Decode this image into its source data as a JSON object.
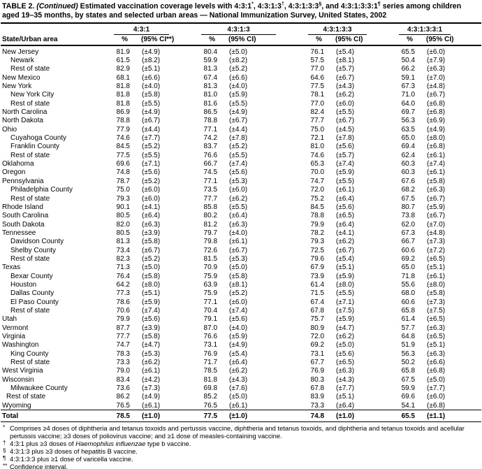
{
  "title": {
    "segments": [
      {
        "text": "TABLE 2. "
      },
      {
        "text": "(Continued)",
        "italic": true
      },
      {
        "text": " Estimated vaccination coverage levels with 4:3:1"
      },
      {
        "text": "*",
        "sup": true
      },
      {
        "text": ", 4:3:1:3",
        "nosp": true
      },
      {
        "text": "†",
        "sup": true
      },
      {
        "text": ", 4:3:1:3:3",
        "nosp": true
      },
      {
        "text": "§",
        "sup": true
      },
      {
        "text": ", and 4:3:1:3:3:1",
        "nosp": true
      },
      {
        "text": "¶",
        "sup": true
      },
      {
        "text": " series among children aged 19–35 months, by states and selected urban areas — National Immunization Survey, United States, 2002"
      }
    ]
  },
  "table": {
    "state_header": "State/Urban area",
    "groups": [
      {
        "label": "4:3:1",
        "pct_header": "%",
        "ci_header": "(95% CI**)"
      },
      {
        "label": "4:3:1:3",
        "pct_header": "%",
        "ci_header": "(95% CI)"
      },
      {
        "label": "4:3:1:3:3",
        "pct_header": "%",
        "ci_header": "(95% CI)"
      },
      {
        "label": "4:3:1:3:3:1",
        "pct_header": "%",
        "ci_header": "(95% CI)"
      }
    ],
    "rows": [
      {
        "area": "New Jersey",
        "indent": 0,
        "values": [
          "81.9",
          "(±4.9)",
          "80.4",
          "(±5.0)",
          "76.1",
          "(±5.4)",
          "65.5",
          "(±6.0)"
        ]
      },
      {
        "area": "Newark",
        "indent": 2,
        "values": [
          "61.5",
          "(±8.2)",
          "59.9",
          "(±8.2)",
          "57.5",
          "(±8.1)",
          "50.4",
          "(±7.9)"
        ]
      },
      {
        "area": "Rest of state",
        "indent": 2,
        "values": [
          "82.9",
          "(±5.1)",
          "81.3",
          "(±5.2)",
          "77.0",
          "(±5.7)",
          "66.2",
          "(±6.3)"
        ]
      },
      {
        "area": "New Mexico",
        "indent": 0,
        "values": [
          "68.1",
          "(±6.6)",
          "67.4",
          "(±6.6)",
          "64.6",
          "(±6.7)",
          "59.1",
          "(±7.0)"
        ]
      },
      {
        "area": "New York",
        "indent": 0,
        "values": [
          "81.8",
          "(±4.0)",
          "81.3",
          "(±4.0)",
          "77.5",
          "(±4.3)",
          "67.3",
          "(±4.8)"
        ]
      },
      {
        "area": "New York City",
        "indent": 2,
        "values": [
          "81.8",
          "(±5.8)",
          "81.0",
          "(±5.9)",
          "78.1",
          "(±6.2)",
          "71.0",
          "(±6.7)"
        ]
      },
      {
        "area": "Rest of state",
        "indent": 2,
        "values": [
          "81.8",
          "(±5.5)",
          "81.6",
          "(±5.5)",
          "77.0",
          "(±6.0)",
          "64.0",
          "(±6.8)"
        ]
      },
      {
        "area": "North Carolina",
        "indent": 0,
        "values": [
          "86.9",
          "(±4.9)",
          "86.5",
          "(±4.9)",
          "82.4",
          "(±5.5)",
          "69.7",
          "(±6.8)"
        ]
      },
      {
        "area": "North Dakota",
        "indent": 0,
        "values": [
          "78.8",
          "(±6.7)",
          "78.8",
          "(±6.7)",
          "77.7",
          "(±6.7)",
          "56.3",
          "(±6.9)"
        ]
      },
      {
        "area": "Ohio",
        "indent": 0,
        "values": [
          "77.9",
          "(±4.4)",
          "77.1",
          "(±4.4)",
          "75.0",
          "(±4.5)",
          "63.5",
          "(±4.9)"
        ]
      },
      {
        "area": "Cuyahoga County",
        "indent": 2,
        "values": [
          "74.6",
          "(±7.7)",
          "74.2",
          "(±7.8)",
          "72.1",
          "(±7.8)",
          "65.0",
          "(±8.0)"
        ]
      },
      {
        "area": "Franklin County",
        "indent": 2,
        "values": [
          "84.5",
          "(±5.2)",
          "83.7",
          "(±5.2)",
          "81.0",
          "(±5.6)",
          "69.4",
          "(±6.8)"
        ]
      },
      {
        "area": "Rest of state",
        "indent": 2,
        "values": [
          "77.5",
          "(±5.5)",
          "76.6",
          "(±5.5)",
          "74.6",
          "(±5.7)",
          "62.4",
          "(±6.1)"
        ]
      },
      {
        "area": "Oklahoma",
        "indent": 0,
        "values": [
          "69.6",
          "(±7.1)",
          "66.7",
          "(±7.4)",
          "65.3",
          "(±7.4)",
          "60.3",
          "(±7.4)"
        ]
      },
      {
        "area": "Oregon",
        "indent": 0,
        "values": [
          "74.8",
          "(±5.6)",
          "74.5",
          "(±5.6)",
          "70.0",
          "(±5.9)",
          "60.3",
          "(±6.1)"
        ]
      },
      {
        "area": "Pennsylvania",
        "indent": 0,
        "values": [
          "78.7",
          "(±5.2)",
          "77.1",
          "(±5.3)",
          "74.7",
          "(±5.5)",
          "67.6",
          "(±5.8)"
        ]
      },
      {
        "area": "Philadelphia County",
        "indent": 2,
        "values": [
          "75.0",
          "(±6.0)",
          "73.5",
          "(±6.0)",
          "72.0",
          "(±6.1)",
          "68.2",
          "(±6.3)"
        ]
      },
      {
        "area": "Rest of state",
        "indent": 2,
        "values": [
          "79.3",
          "(±6.0)",
          "77.7",
          "(±6.2)",
          "75.2",
          "(±6.4)",
          "67.5",
          "(±6.7)"
        ]
      },
      {
        "area": "Rhode Island",
        "indent": 0,
        "values": [
          "90.1",
          "(±4.1)",
          "85.8",
          "(±5.5)",
          "84.5",
          "(±5.6)",
          "80.7",
          "(±5.9)"
        ]
      },
      {
        "area": "South Carolina",
        "indent": 0,
        "values": [
          "80.5",
          "(±6.4)",
          "80.2",
          "(±6.4)",
          "78.8",
          "(±6.5)",
          "73.8",
          "(±6.7)"
        ]
      },
      {
        "area": "South Dakota",
        "indent": 0,
        "values": [
          "82.0",
          "(±6.3)",
          "81.2",
          "(±6.3)",
          "79.9",
          "(±6.4)",
          "62.0",
          "(±7.0)"
        ]
      },
      {
        "area": "Tennessee",
        "indent": 0,
        "values": [
          "80.5",
          "(±3.9)",
          "79.7",
          "(±4.0)",
          "78.2",
          "(±4.1)",
          "67.3",
          "(±4.8)"
        ]
      },
      {
        "area": "Davidson County",
        "indent": 2,
        "values": [
          "81.3",
          "(±5.8)",
          "79.8",
          "(±6.1)",
          "79.3",
          "(±6.2)",
          "66.7",
          "(±7.3)"
        ]
      },
      {
        "area": "Shelby County",
        "indent": 2,
        "values": [
          "73.4",
          "(±6.7)",
          "72.6",
          "(±6.7)",
          "72.5",
          "(±6.7)",
          "60.6",
          "(±7.2)"
        ]
      },
      {
        "area": "Rest of state",
        "indent": 2,
        "values": [
          "82.3",
          "(±5.2)",
          "81.5",
          "(±5.3)",
          "79.6",
          "(±5.4)",
          "69.2",
          "(±6.5)"
        ]
      },
      {
        "area": "Texas",
        "indent": 0,
        "values": [
          "71.3",
          "(±5.0)",
          "70.9",
          "(±5.0)",
          "67.9",
          "(±5.1)",
          "65.0",
          "(±5.1)"
        ]
      },
      {
        "area": "Bexar County",
        "indent": 2,
        "values": [
          "76.4",
          "(±5.8)",
          "75.9",
          "(±5.8)",
          "73.9",
          "(±5.9)",
          "71.8",
          "(±6.1)"
        ]
      },
      {
        "area": "Houston",
        "indent": 2,
        "values": [
          "64.2",
          "(±8.0)",
          "63.9",
          "(±8.1)",
          "61.4",
          "(±8.0)",
          "55.6",
          "(±8.0)"
        ]
      },
      {
        "area": "Dallas County",
        "indent": 2,
        "values": [
          "77.3",
          "(±5.1)",
          "75.9",
          "(±5.2)",
          "71.5",
          "(±5.5)",
          "68.0",
          "(±5.8)"
        ]
      },
      {
        "area": "El Paso County",
        "indent": 2,
        "values": [
          "78.6",
          "(±5.9)",
          "77.1",
          "(±6.0)",
          "67.4",
          "(±7.1)",
          "60.6",
          "(±7.3)"
        ]
      },
      {
        "area": "Rest of state",
        "indent": 2,
        "values": [
          "70.6",
          "(±7.4)",
          "70.4",
          "(±7.4)",
          "67.8",
          "(±7.5)",
          "65.8",
          "(±7.5)"
        ]
      },
      {
        "area": "Utah",
        "indent": 0,
        "values": [
          "79.9",
          "(±5.6)",
          "79.1",
          "(±5.6)",
          "75.7",
          "(±5.9)",
          "61.4",
          "(±6.5)"
        ]
      },
      {
        "area": "Vermont",
        "indent": 0,
        "values": [
          "87.7",
          "(±3.9)",
          "87.0",
          "(±4.0)",
          "80.9",
          "(±4.7)",
          "57.7",
          "(±6.3)"
        ]
      },
      {
        "area": "Virginia",
        "indent": 0,
        "values": [
          "77.7",
          "(±5.8)",
          "76.6",
          "(±5.9)",
          "72.0",
          "(±6.2)",
          "64.8",
          "(±6.5)"
        ]
      },
      {
        "area": "Washington",
        "indent": 0,
        "values": [
          "74.7",
          "(±4.7)",
          "73.1",
          "(±4.9)",
          "69.2",
          "(±5.0)",
          "51.9",
          "(±5.1)"
        ]
      },
      {
        "area": "King County",
        "indent": 2,
        "values": [
          "78.3",
          "(±5.3)",
          "76.9",
          "(±5.4)",
          "73.1",
          "(±5.6)",
          "56.3",
          "(±6.3)"
        ]
      },
      {
        "area": "Rest of state",
        "indent": 2,
        "values": [
          "73.3",
          "(±6.2)",
          "71.7",
          "(±6.4)",
          "67.7",
          "(±6.5)",
          "50.2",
          "(±6.6)"
        ]
      },
      {
        "area": "West Virginia",
        "indent": 0,
        "values": [
          "79.0",
          "(±6.1)",
          "78.5",
          "(±6.2)",
          "76.9",
          "(±6.3)",
          "65.8",
          "(±6.8)"
        ]
      },
      {
        "area": "Wisconsin",
        "indent": 0,
        "values": [
          "83.4",
          "(±4.2)",
          "81.8",
          "(±4.3)",
          "80.3",
          "(±4.3)",
          "67.5",
          "(±5.0)"
        ]
      },
      {
        "area": "Milwaukee County",
        "indent": 2,
        "values": [
          "73.6",
          "(±7.3)",
          "69.8",
          "(±7.6)",
          "67.8",
          "(±7.7)",
          "59.9",
          "(±7.7)"
        ]
      },
      {
        "area": "Rest of state",
        "indent": 1,
        "values": [
          "86.2",
          "(±4.9)",
          "85.2",
          "(±5.0)",
          "83.9",
          "(±5.1)",
          "69.6",
          "(±6.0)"
        ]
      },
      {
        "area": "Wyoming",
        "indent": 0,
        "values": [
          "76.5",
          "(±6.1)",
          "76.5",
          "(±6.1)",
          "73.3",
          "(±6.4)",
          "54.1",
          "(±6.8)"
        ]
      }
    ],
    "total": {
      "area": "Total",
      "values": [
        "78.5",
        "(±1.0)",
        "77.5",
        "(±1.0)",
        "74.8",
        "(±1.0)",
        "65.5",
        "(±1.1)"
      ]
    }
  },
  "footnotes": [
    {
      "marker": "*",
      "segments": [
        {
          "text": "Comprises ≥4 doses of diphtheria and tetanus toxoids and pertussis vaccine, diphtheria and tetanus toxoids, and diphtheria and tetanus toxoids and acellular pertussis vaccine; ≥3 doses of poliovirus vaccine; and ≥1 dose of measles-containing vaccine."
        }
      ]
    },
    {
      "marker": "†",
      "segments": [
        {
          "text": "4:3:1 plus ≥3 doses of "
        },
        {
          "text": "Haemophilus influenzae",
          "italic": true
        },
        {
          "text": " type b vaccine."
        }
      ]
    },
    {
      "marker": "§",
      "segments": [
        {
          "text": "4:3:1:3 plus ≥3 doses of hepatitis B vaccine."
        }
      ]
    },
    {
      "marker": "¶",
      "segments": [
        {
          "text": "4:3:1:3:3 plus ≥1 dose of varicella vaccine."
        }
      ]
    },
    {
      "marker": "**",
      "segments": [
        {
          "text": "Confidence interval."
        }
      ]
    }
  ]
}
